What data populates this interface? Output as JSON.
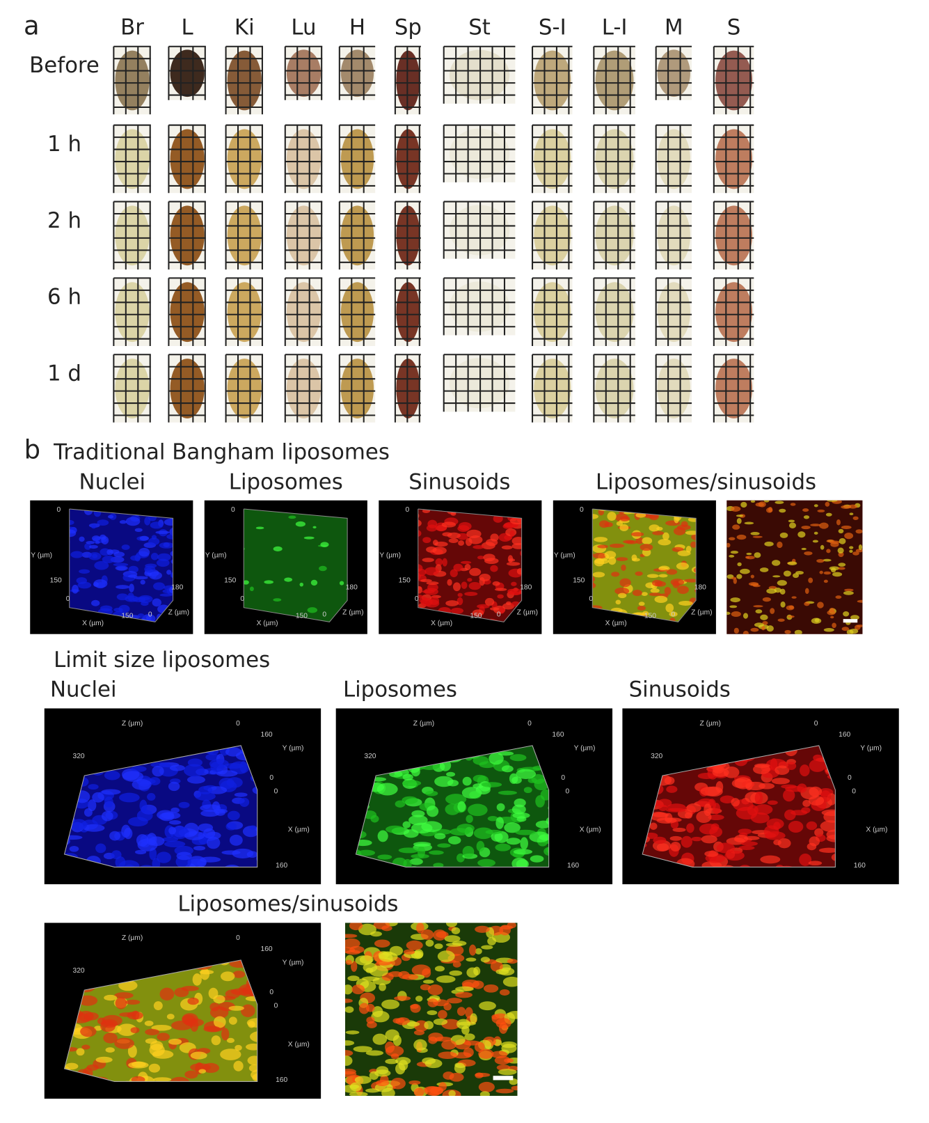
{
  "panel_a": {
    "label": "a",
    "columns": [
      "Br",
      "L",
      "Ki",
      "Lu",
      "H",
      "Sp",
      "St",
      "S-I",
      "L-I",
      "M",
      "S"
    ],
    "rows": [
      "Before",
      "1 h",
      "2 h",
      "6 h",
      "1 d"
    ]
  },
  "panel_b": {
    "label": "b",
    "traditional": {
      "title": "Traditional Bangham liposomes",
      "panels": [
        "Nuclei",
        "Liposomes",
        "Sinusoids",
        "Liposomes/sinusoids"
      ],
      "axis_labels": [
        "0",
        "Y (µm)",
        "150",
        "0",
        "180",
        "X (µm)",
        "150",
        "0",
        "Z (µm)"
      ]
    },
    "limit_size": {
      "title": "Limit size liposomes",
      "panels": [
        "Nuclei",
        "Liposomes",
        "Sinusoids",
        "Liposomes/sinusoids"
      ],
      "axis_labels": [
        "Z (µm)",
        "0",
        "320",
        "160",
        "Y (µm)",
        "0",
        "0",
        "X (µm)",
        "160"
      ]
    }
  }
}
